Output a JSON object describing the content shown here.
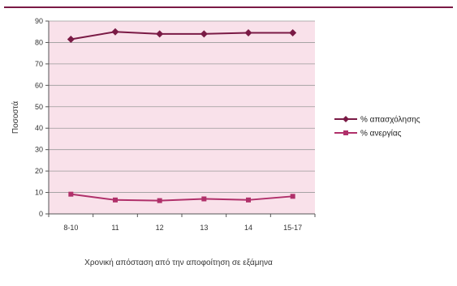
{
  "chart_data": {
    "type": "line",
    "categories": [
      "8-10",
      "11",
      "12",
      "13",
      "14",
      "15-17"
    ],
    "series": [
      {
        "name": "% απασχόλησης",
        "values": [
          81.5,
          85,
          84,
          84,
          84.5,
          84.5
        ],
        "color": "#7a1a45",
        "marker": "diamond"
      },
      {
        "name": "% ανεργίας",
        "values": [
          9.2,
          6.5,
          6.2,
          7,
          6.5,
          8.2
        ],
        "color": "#b0306a",
        "marker": "square"
      }
    ],
    "ylabel": "Ποσοστά",
    "xlabel": "Χρονική απόσταση από την αποφοίτηση σε εξάμηνα",
    "ylim": [
      0,
      90
    ],
    "yticks": [
      0,
      10,
      20,
      30,
      40,
      50,
      60,
      70,
      80,
      90
    ],
    "grid": true,
    "plot_background": "#f9e1ea",
    "legend_position": "right"
  }
}
